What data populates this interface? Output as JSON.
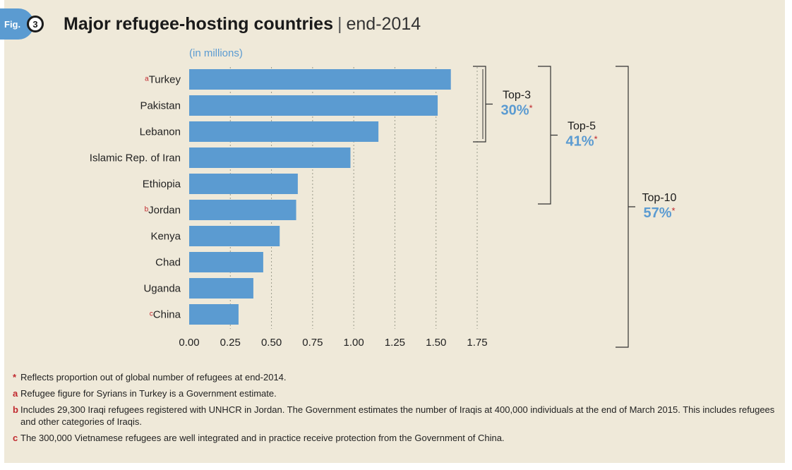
{
  "figure": {
    "label": "Fig.",
    "number": "3",
    "title": "Major refugee-hosting countries",
    "title_separator": "|",
    "subtitle": "end-2014",
    "units": "(in millions)"
  },
  "chart_data": {
    "type": "bar",
    "orientation": "horizontal",
    "categories": [
      "Turkey",
      "Pakistan",
      "Lebanon",
      "Islamic Rep. of Iran",
      "Ethiopia",
      "Jordan",
      "Kenya",
      "Chad",
      "Uganda",
      "China"
    ],
    "category_markers": [
      "a",
      "",
      "",
      "",
      "",
      "b",
      "",
      "",
      "",
      "c"
    ],
    "values": [
      1.59,
      1.51,
      1.15,
      0.98,
      0.66,
      0.65,
      0.55,
      0.45,
      0.39,
      0.3
    ],
    "xlim": [
      0,
      1.75
    ],
    "xticks": [
      "0.00",
      "0.25",
      "0.50",
      "0.75",
      "1.00",
      "1.25",
      "1.50",
      "1.75"
    ],
    "xtick_values": [
      0,
      0.25,
      0.5,
      0.75,
      1.0,
      1.25,
      1.5,
      1.75
    ],
    "grid": "vertical dashed",
    "bar_color": "#5b9bd1",
    "brackets": [
      {
        "label": "Top-3",
        "value": "30%",
        "marker": "*",
        "from_index": 0,
        "to_index": 2
      },
      {
        "label": "Top-5",
        "value": "41%",
        "marker": "*",
        "from_index": 0,
        "to_index": 4
      },
      {
        "label": "Top-10",
        "value": "57%",
        "marker": "*",
        "from_index": 0,
        "to_index": 9
      }
    ]
  },
  "footnotes": [
    {
      "marker": "*",
      "text": "Reflects proportion out of global number of refugees at end-2014."
    },
    {
      "marker": "a",
      "text": "Refugee figure for Syrians in Turkey is a Government estimate."
    },
    {
      "marker": "b",
      "text": "Includes 29,300 Iraqi refugees registered with UNHCR in Jordan. The Government estimates the number of Iraqis at 400,000 individuals at the end of March 2015. This includes refugees and other categories of Iraqis."
    },
    {
      "marker": "c",
      "text": "The 300,000 Vietnamese refugees are well integrated and in practice receive protection from the Government of China."
    }
  ],
  "colors": {
    "accent": "#5b9bd1",
    "marker": "#c0272d",
    "background": "#efe9d9"
  }
}
